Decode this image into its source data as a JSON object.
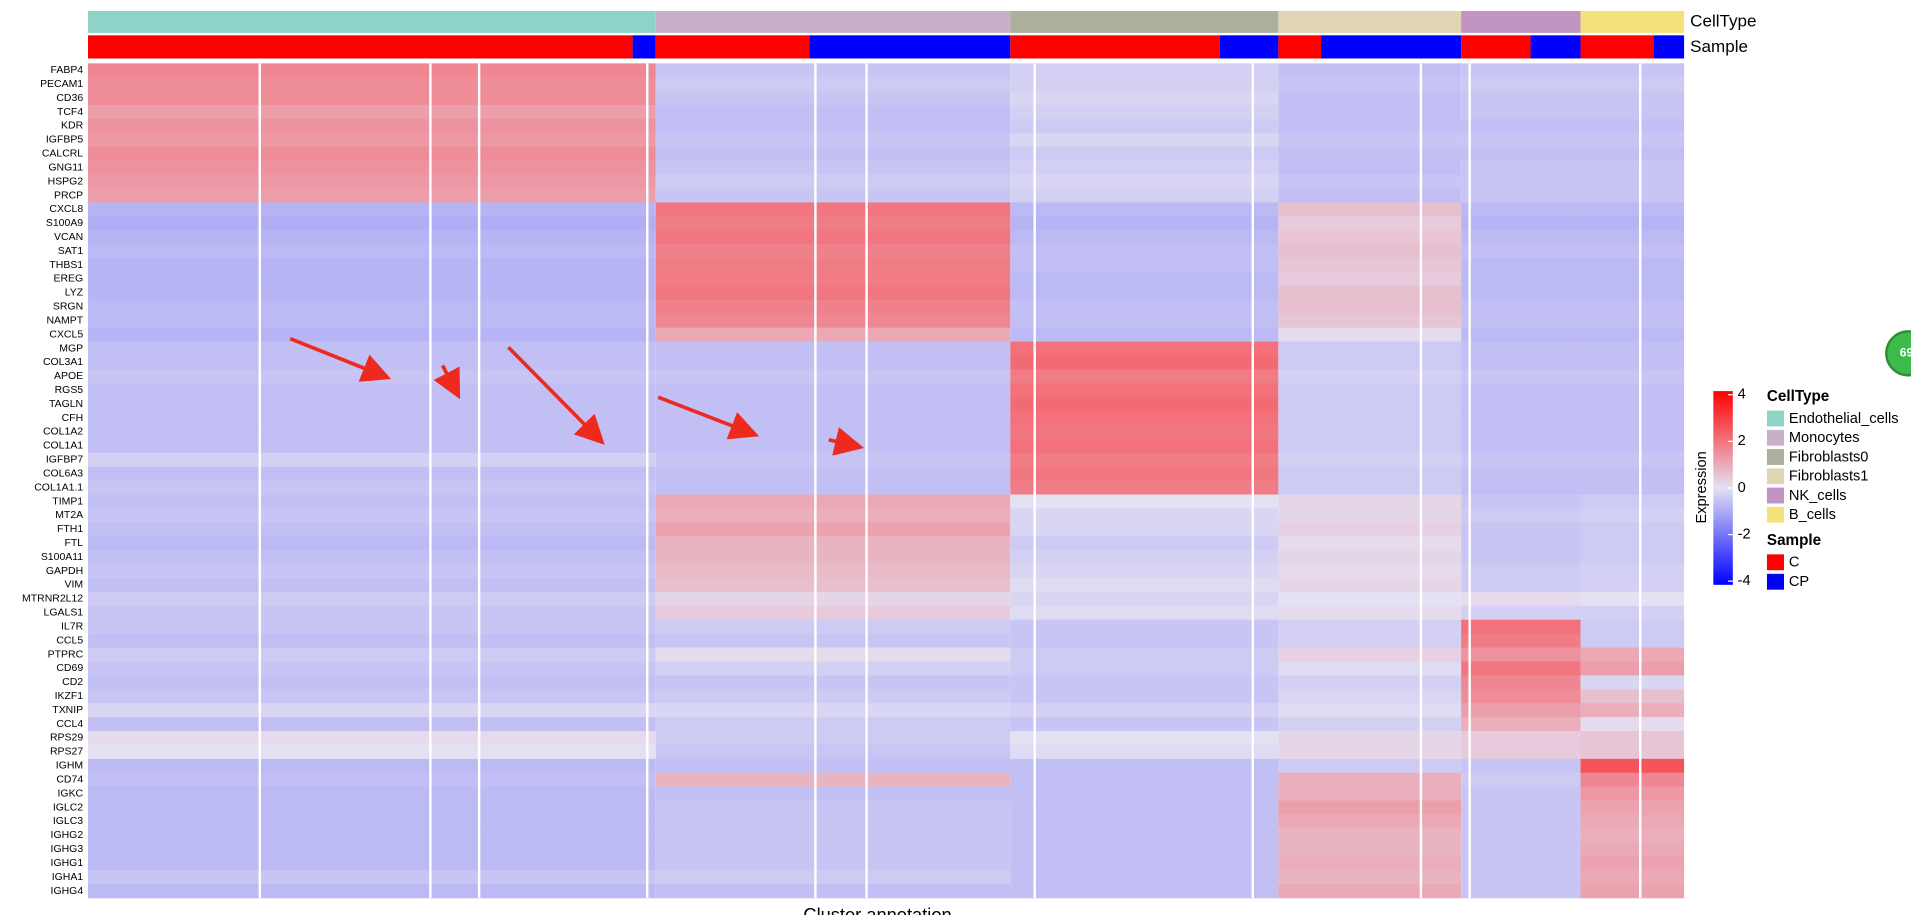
{
  "chart_data": {
    "type": "heatmap",
    "celltype_title": "CellType",
    "sample_title": "Sample",
    "celltypes": [
      {
        "name": "Endothelial_cells",
        "color": "#8fd3c8"
      },
      {
        "name": "Monocytes",
        "color": "#c9b0c8"
      },
      {
        "name": "Fibroblasts0",
        "color": "#aeb09e"
      },
      {
        "name": "Fibroblasts1",
        "color": "#e0d5b5"
      },
      {
        "name": "NK_cells",
        "color": "#c294c4"
      },
      {
        "name": "B_cells",
        "color": "#f6e27a"
      }
    ],
    "samples": [
      {
        "name": "C",
        "color": "#ff0000"
      },
      {
        "name": "CP",
        "color": "#0000ff"
      }
    ],
    "rows": [
      "FABP4",
      "PECAM1",
      "CD36",
      "TCF4",
      "KDR",
      "IGFBP5",
      "CALCRL",
      "GNG11",
      "HSPG2",
      "PRCP",
      "CXCL8",
      "S100A9",
      "VCAN",
      "SAT1",
      "THBS1",
      "EREG",
      "LYZ",
      "SRGN",
      "NAMPT",
      "CXCL5",
      "MGP",
      "COL3A1",
      "APOE",
      "RGS5",
      "TAGLN",
      "CFH",
      "COL1A2",
      "COL1A1",
      "IGFBP7",
      "COL6A3",
      "COL1A1.1",
      "TIMP1",
      "MT2A",
      "FTH1",
      "FTL",
      "S100A11",
      "GAPDH",
      "VIM",
      "MTRNR2L12",
      "LGALS1",
      "IL7R",
      "CCL5",
      "PTPRC",
      "CD69",
      "CD2",
      "IKZF1",
      "TXNIP",
      "CCL4",
      "RPS29",
      "RPS27",
      "IGHM",
      "CD74",
      "IGKC",
      "IGLC2",
      "IGLC3",
      "IGHG2",
      "IGHG3",
      "IGHG1",
      "IGHA1",
      "IGHG4"
    ],
    "values": [
      [
        1.6,
        -0.5,
        -0.3,
        -0.6,
        -0.5,
        -0.5
      ],
      [
        1.5,
        -0.4,
        -0.3,
        -0.5,
        -0.4,
        -0.4
      ],
      [
        1.5,
        -0.5,
        -0.2,
        -0.6,
        -0.5,
        -0.5
      ],
      [
        1.2,
        -0.6,
        -0.3,
        -0.6,
        -0.5,
        -0.5
      ],
      [
        1.4,
        -0.6,
        -0.4,
        -0.6,
        -0.6,
        -0.6
      ],
      [
        1.3,
        -0.5,
        -0.2,
        -0.5,
        -0.5,
        -0.5
      ],
      [
        1.5,
        -0.6,
        -0.4,
        -0.6,
        -0.6,
        -0.6
      ],
      [
        1.4,
        -0.5,
        -0.3,
        -0.6,
        -0.5,
        -0.5
      ],
      [
        1.3,
        -0.4,
        -0.2,
        -0.5,
        -0.5,
        -0.5
      ],
      [
        1.2,
        -0.5,
        -0.3,
        -0.6,
        -0.5,
        -0.5
      ],
      [
        -0.8,
        1.9,
        -0.7,
        0.6,
        -0.7,
        -0.7
      ],
      [
        -0.9,
        1.8,
        -0.8,
        0.4,
        -0.8,
        -0.8
      ],
      [
        -0.8,
        1.9,
        -0.7,
        0.5,
        -0.7,
        -0.7
      ],
      [
        -0.7,
        1.7,
        -0.6,
        0.6,
        -0.6,
        -0.6
      ],
      [
        -0.8,
        1.8,
        -0.6,
        0.5,
        -0.7,
        -0.7
      ],
      [
        -0.8,
        1.8,
        -0.7,
        0.4,
        -0.7,
        -0.7
      ],
      [
        -0.8,
        1.9,
        -0.7,
        0.6,
        -0.7,
        -0.7
      ],
      [
        -0.7,
        1.7,
        -0.6,
        0.6,
        -0.6,
        -0.6
      ],
      [
        -0.7,
        1.6,
        -0.6,
        0.5,
        -0.6,
        -0.6
      ],
      [
        -0.8,
        1.0,
        -0.7,
        0.1,
        -0.7,
        -0.7
      ],
      [
        -0.6,
        -0.6,
        2.0,
        -0.4,
        -0.6,
        -0.6
      ],
      [
        -0.6,
        -0.6,
        2.1,
        -0.4,
        -0.6,
        -0.6
      ],
      [
        -0.5,
        -0.5,
        1.8,
        -0.3,
        -0.5,
        -0.5
      ],
      [
        -0.6,
        -0.6,
        2.0,
        -0.4,
        -0.6,
        -0.6
      ],
      [
        -0.6,
        -0.6,
        2.1,
        -0.4,
        -0.6,
        -0.6
      ],
      [
        -0.6,
        -0.6,
        2.0,
        -0.4,
        -0.6,
        -0.6
      ],
      [
        -0.6,
        -0.6,
        1.9,
        -0.4,
        -0.6,
        -0.6
      ],
      [
        -0.6,
        -0.6,
        2.0,
        -0.4,
        -0.6,
        -0.6
      ],
      [
        -0.3,
        -0.5,
        1.8,
        -0.3,
        -0.5,
        -0.5
      ],
      [
        -0.6,
        -0.6,
        1.9,
        -0.4,
        -0.6,
        -0.6
      ],
      [
        -0.5,
        -0.6,
        1.8,
        -0.4,
        -0.6,
        -0.6
      ],
      [
        -0.6,
        1.0,
        0.0,
        0.2,
        -0.5,
        -0.4
      ],
      [
        -0.5,
        0.9,
        -0.2,
        0.2,
        -0.4,
        -0.3
      ],
      [
        -0.6,
        1.1,
        -0.2,
        0.3,
        -0.5,
        -0.4
      ],
      [
        -0.7,
        0.8,
        -0.4,
        0.1,
        -0.5,
        -0.4
      ],
      [
        -0.6,
        0.8,
        -0.3,
        0.2,
        -0.5,
        -0.4
      ],
      [
        -0.5,
        0.7,
        -0.2,
        0.1,
        -0.4,
        -0.3
      ],
      [
        -0.6,
        0.6,
        -0.1,
        0.2,
        -0.4,
        -0.3
      ],
      [
        -0.4,
        0.2,
        -0.2,
        0.0,
        0.1,
        0.0
      ],
      [
        -0.5,
        0.4,
        -0.1,
        0.1,
        -0.3,
        -0.3
      ],
      [
        -0.5,
        -0.4,
        -0.5,
        -0.3,
        2.0,
        -0.4
      ],
      [
        -0.6,
        -0.5,
        -0.5,
        -0.3,
        1.8,
        -0.4
      ],
      [
        -0.4,
        0.1,
        -0.4,
        0.3,
        1.4,
        1.0
      ],
      [
        -0.5,
        -0.3,
        -0.4,
        -0.1,
        1.9,
        1.2
      ],
      [
        -0.6,
        -0.5,
        -0.5,
        -0.3,
        1.6,
        -0.2
      ],
      [
        -0.5,
        -0.4,
        -0.5,
        -0.2,
        1.5,
        0.6
      ],
      [
        -0.2,
        -0.2,
        -0.3,
        -0.1,
        1.2,
        0.9
      ],
      [
        -0.6,
        -0.4,
        -0.5,
        -0.3,
        0.9,
        0.1
      ],
      [
        0.1,
        -0.4,
        0.0,
        0.2,
        0.4,
        0.5
      ],
      [
        0.0,
        -0.5,
        -0.1,
        0.2,
        0.4,
        0.5
      ],
      [
        -0.7,
        -0.6,
        -0.6,
        -0.4,
        -0.5,
        2.5
      ],
      [
        -0.6,
        0.8,
        -0.6,
        0.9,
        -0.4,
        1.6
      ],
      [
        -0.7,
        -0.6,
        -0.6,
        0.9,
        -0.5,
        1.3
      ],
      [
        -0.7,
        -0.5,
        -0.6,
        1.2,
        -0.5,
        1.1
      ],
      [
        -0.7,
        -0.5,
        -0.6,
        1.0,
        -0.5,
        1.0
      ],
      [
        -0.7,
        -0.5,
        -0.6,
        0.8,
        -0.5,
        0.9
      ],
      [
        -0.7,
        -0.5,
        -0.6,
        0.8,
        -0.5,
        1.0
      ],
      [
        -0.7,
        -0.5,
        -0.6,
        0.9,
        -0.5,
        1.1
      ],
      [
        -0.5,
        -0.4,
        -0.6,
        0.8,
        -0.5,
        1.0
      ],
      [
        -0.7,
        -0.6,
        -0.6,
        1.0,
        -0.5,
        1.1
      ]
    ],
    "colorscale": [
      "#0000ff",
      "#e4e1f3",
      "#ff0000"
    ],
    "clim": [
      -4,
      4
    ],
    "cticks": [
      4,
      2,
      0,
      -2,
      -4
    ],
    "colorbar_title": "Expression",
    "xlabel": "Cluster annotation",
    "badge": "69"
  }
}
